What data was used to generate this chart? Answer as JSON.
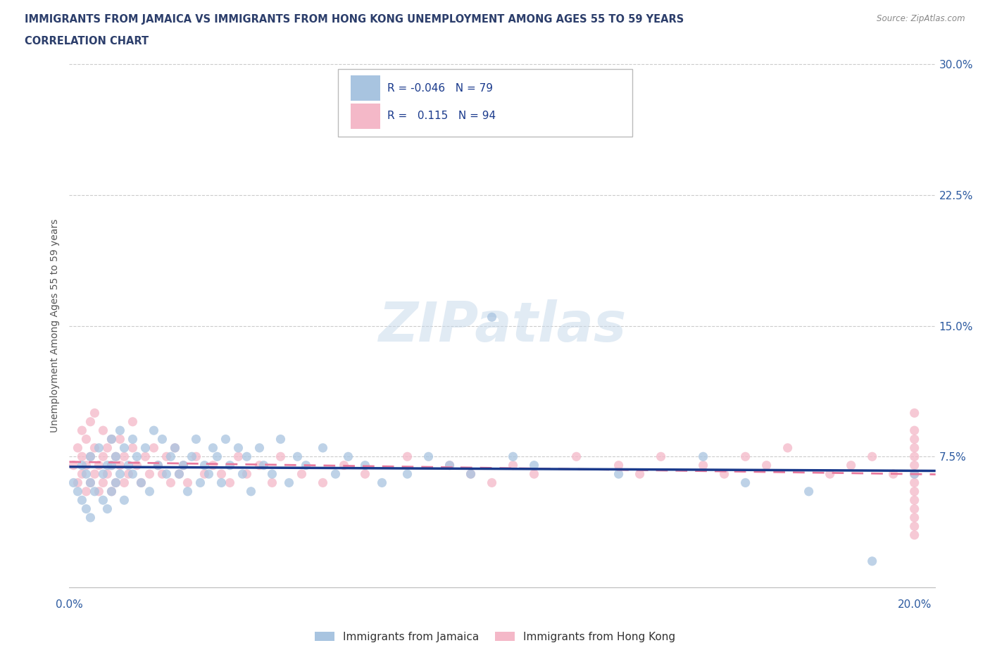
{
  "title_line1": "IMMIGRANTS FROM JAMAICA VS IMMIGRANTS FROM HONG KONG UNEMPLOYMENT AMONG AGES 55 TO 59 YEARS",
  "title_line2": "CORRELATION CHART",
  "source_text": "Source: ZipAtlas.com",
  "ylabel": "Unemployment Among Ages 55 to 59 years",
  "xlim": [
    0.0,
    0.205
  ],
  "ylim": [
    -0.005,
    0.305
  ],
  "jamaica_color": "#a8c4e0",
  "hong_kong_color": "#f4b8c8",
  "jamaica_line_color": "#1a3a8c",
  "hong_kong_line_color": "#e87a9e",
  "R_jamaica": -0.046,
  "N_jamaica": 79,
  "R_hong_kong": 0.115,
  "N_hong_kong": 94,
  "background_color": "#ffffff",
  "grid_color": "#cccccc",
  "title_color": "#2c3e6b",
  "tick_color": "#2c5aa0",
  "ylabel_color": "#555555",
  "jamaica_x": [
    0.001,
    0.002,
    0.003,
    0.003,
    0.004,
    0.004,
    0.005,
    0.005,
    0.005,
    0.006,
    0.007,
    0.008,
    0.008,
    0.009,
    0.009,
    0.01,
    0.01,
    0.01,
    0.011,
    0.011,
    0.012,
    0.012,
    0.013,
    0.013,
    0.014,
    0.015,
    0.015,
    0.016,
    0.017,
    0.018,
    0.019,
    0.02,
    0.021,
    0.022,
    0.023,
    0.024,
    0.025,
    0.026,
    0.027,
    0.028,
    0.029,
    0.03,
    0.031,
    0.032,
    0.033,
    0.034,
    0.035,
    0.036,
    0.037,
    0.038,
    0.04,
    0.041,
    0.042,
    0.043,
    0.045,
    0.046,
    0.048,
    0.05,
    0.052,
    0.054,
    0.056,
    0.06,
    0.063,
    0.066,
    0.07,
    0.074,
    0.08,
    0.085,
    0.09,
    0.095,
    0.1,
    0.105,
    0.11,
    0.13,
    0.15,
    0.16,
    0.175,
    0.19,
    0.2
  ],
  "jamaica_y": [
    0.06,
    0.055,
    0.07,
    0.05,
    0.065,
    0.045,
    0.075,
    0.06,
    0.04,
    0.055,
    0.08,
    0.065,
    0.05,
    0.07,
    0.045,
    0.085,
    0.07,
    0.055,
    0.075,
    0.06,
    0.09,
    0.065,
    0.08,
    0.05,
    0.07,
    0.085,
    0.065,
    0.075,
    0.06,
    0.08,
    0.055,
    0.09,
    0.07,
    0.085,
    0.065,
    0.075,
    0.08,
    0.065,
    0.07,
    0.055,
    0.075,
    0.085,
    0.06,
    0.07,
    0.065,
    0.08,
    0.075,
    0.06,
    0.085,
    0.07,
    0.08,
    0.065,
    0.075,
    0.055,
    0.08,
    0.07,
    0.065,
    0.085,
    0.06,
    0.075,
    0.07,
    0.08,
    0.065,
    0.075,
    0.07,
    0.06,
    0.065,
    0.075,
    0.07,
    0.065,
    0.155,
    0.075,
    0.07,
    0.065,
    0.075,
    0.06,
    0.055,
    0.015,
    0.065
  ],
  "hong_kong_x": [
    0.001,
    0.002,
    0.002,
    0.003,
    0.003,
    0.003,
    0.004,
    0.004,
    0.004,
    0.005,
    0.005,
    0.005,
    0.006,
    0.006,
    0.006,
    0.007,
    0.007,
    0.008,
    0.008,
    0.008,
    0.009,
    0.009,
    0.01,
    0.01,
    0.01,
    0.011,
    0.011,
    0.012,
    0.012,
    0.013,
    0.013,
    0.014,
    0.015,
    0.015,
    0.016,
    0.017,
    0.018,
    0.019,
    0.02,
    0.021,
    0.022,
    0.023,
    0.024,
    0.025,
    0.026,
    0.027,
    0.028,
    0.03,
    0.032,
    0.034,
    0.036,
    0.038,
    0.04,
    0.042,
    0.045,
    0.048,
    0.05,
    0.055,
    0.06,
    0.065,
    0.07,
    0.08,
    0.09,
    0.095,
    0.1,
    0.105,
    0.11,
    0.12,
    0.13,
    0.135,
    0.14,
    0.15,
    0.155,
    0.16,
    0.165,
    0.17,
    0.18,
    0.185,
    0.19,
    0.195,
    0.2,
    0.2,
    0.2,
    0.2,
    0.2,
    0.2,
    0.2,
    0.2,
    0.2,
    0.2,
    0.2,
    0.2,
    0.2,
    0.2
  ],
  "hong_kong_y": [
    0.07,
    0.06,
    0.08,
    0.065,
    0.075,
    0.09,
    0.055,
    0.07,
    0.085,
    0.06,
    0.075,
    0.095,
    0.065,
    0.08,
    0.1,
    0.055,
    0.07,
    0.06,
    0.075,
    0.09,
    0.065,
    0.08,
    0.07,
    0.085,
    0.055,
    0.075,
    0.06,
    0.07,
    0.085,
    0.06,
    0.075,
    0.065,
    0.08,
    0.095,
    0.07,
    0.06,
    0.075,
    0.065,
    0.08,
    0.07,
    0.065,
    0.075,
    0.06,
    0.08,
    0.065,
    0.07,
    0.06,
    0.075,
    0.065,
    0.07,
    0.065,
    0.06,
    0.075,
    0.065,
    0.07,
    0.06,
    0.075,
    0.065,
    0.06,
    0.07,
    0.065,
    0.075,
    0.07,
    0.065,
    0.06,
    0.07,
    0.065,
    0.075,
    0.07,
    0.065,
    0.075,
    0.07,
    0.065,
    0.075,
    0.07,
    0.08,
    0.065,
    0.07,
    0.075,
    0.065,
    0.1,
    0.09,
    0.085,
    0.08,
    0.075,
    0.07,
    0.065,
    0.06,
    0.055,
    0.05,
    0.045,
    0.04,
    0.035,
    0.03
  ]
}
